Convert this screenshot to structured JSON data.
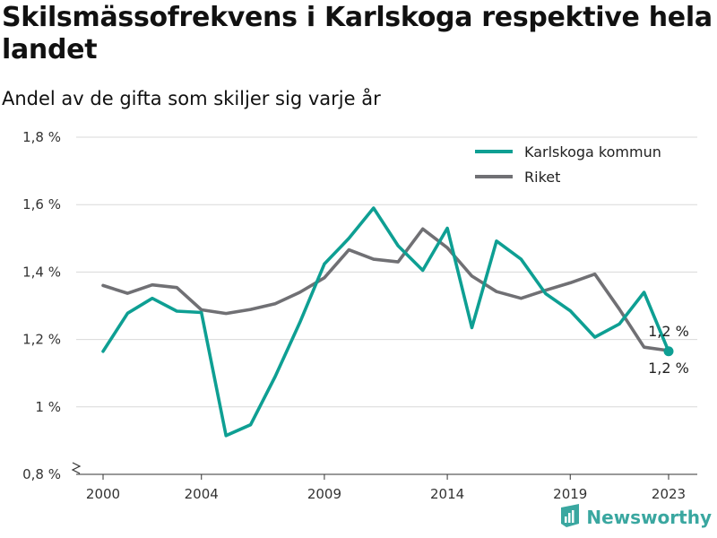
{
  "colors": {
    "karlskoga": "#0e9f93",
    "riket": "#707074",
    "grid": "#d9d9d9",
    "brand": "#3aa7a0"
  },
  "brand": {
    "name": "Newsworthy",
    "icon": "bar-chart-logo-icon"
  },
  "chart_data": {
    "type": "line",
    "title": "Skilsmässofrekvens i Karlskoga respektive hela landet",
    "subtitle": "Andel av de gifta som skiljer sig varje år",
    "ylim": [
      0.8,
      1.8
    ],
    "yticks": [
      0.8,
      1.0,
      1.2,
      1.4,
      1.6,
      1.8
    ],
    "ytick_labels": [
      "0,8 %",
      "1 %",
      "1,2 %",
      "1,4 %",
      "1,6 %",
      "1,8 %"
    ],
    "xticks": [
      2000,
      2004,
      2009,
      2014,
      2019,
      2023
    ],
    "xtick_labels": [
      "2000",
      "2004",
      "2009",
      "2014",
      "2019",
      "2023"
    ],
    "x": [
      2000,
      2001,
      2002,
      2003,
      2004,
      2005,
      2006,
      2007,
      2008,
      2009,
      2010,
      2011,
      2012,
      2013,
      2014,
      2015,
      2016,
      2017,
      2018,
      2019,
      2020,
      2021,
      2022,
      2023
    ],
    "grid": true,
    "legend_position": "top-right",
    "series": [
      {
        "name": "Karlskoga kommun",
        "color": "#0e9f93",
        "values": [
          1.165,
          1.278,
          1.322,
          1.284,
          1.28,
          0.915,
          0.947,
          1.09,
          1.25,
          1.424,
          1.5,
          1.59,
          1.478,
          1.405,
          1.53,
          1.235,
          1.492,
          1.438,
          1.336,
          1.285,
          1.207,
          1.246,
          1.34,
          1.165
        ],
        "end_label": "1,2 %"
      },
      {
        "name": "Riket",
        "color": "#707074",
        "values": [
          1.36,
          1.337,
          1.362,
          1.354,
          1.288,
          1.277,
          1.289,
          1.306,
          1.34,
          1.383,
          1.466,
          1.438,
          1.43,
          1.528,
          1.472,
          1.388,
          1.342,
          1.322,
          1.346,
          1.368,
          1.394,
          1.29,
          1.177,
          1.167
        ],
        "end_label": "1,2 %"
      }
    ]
  }
}
